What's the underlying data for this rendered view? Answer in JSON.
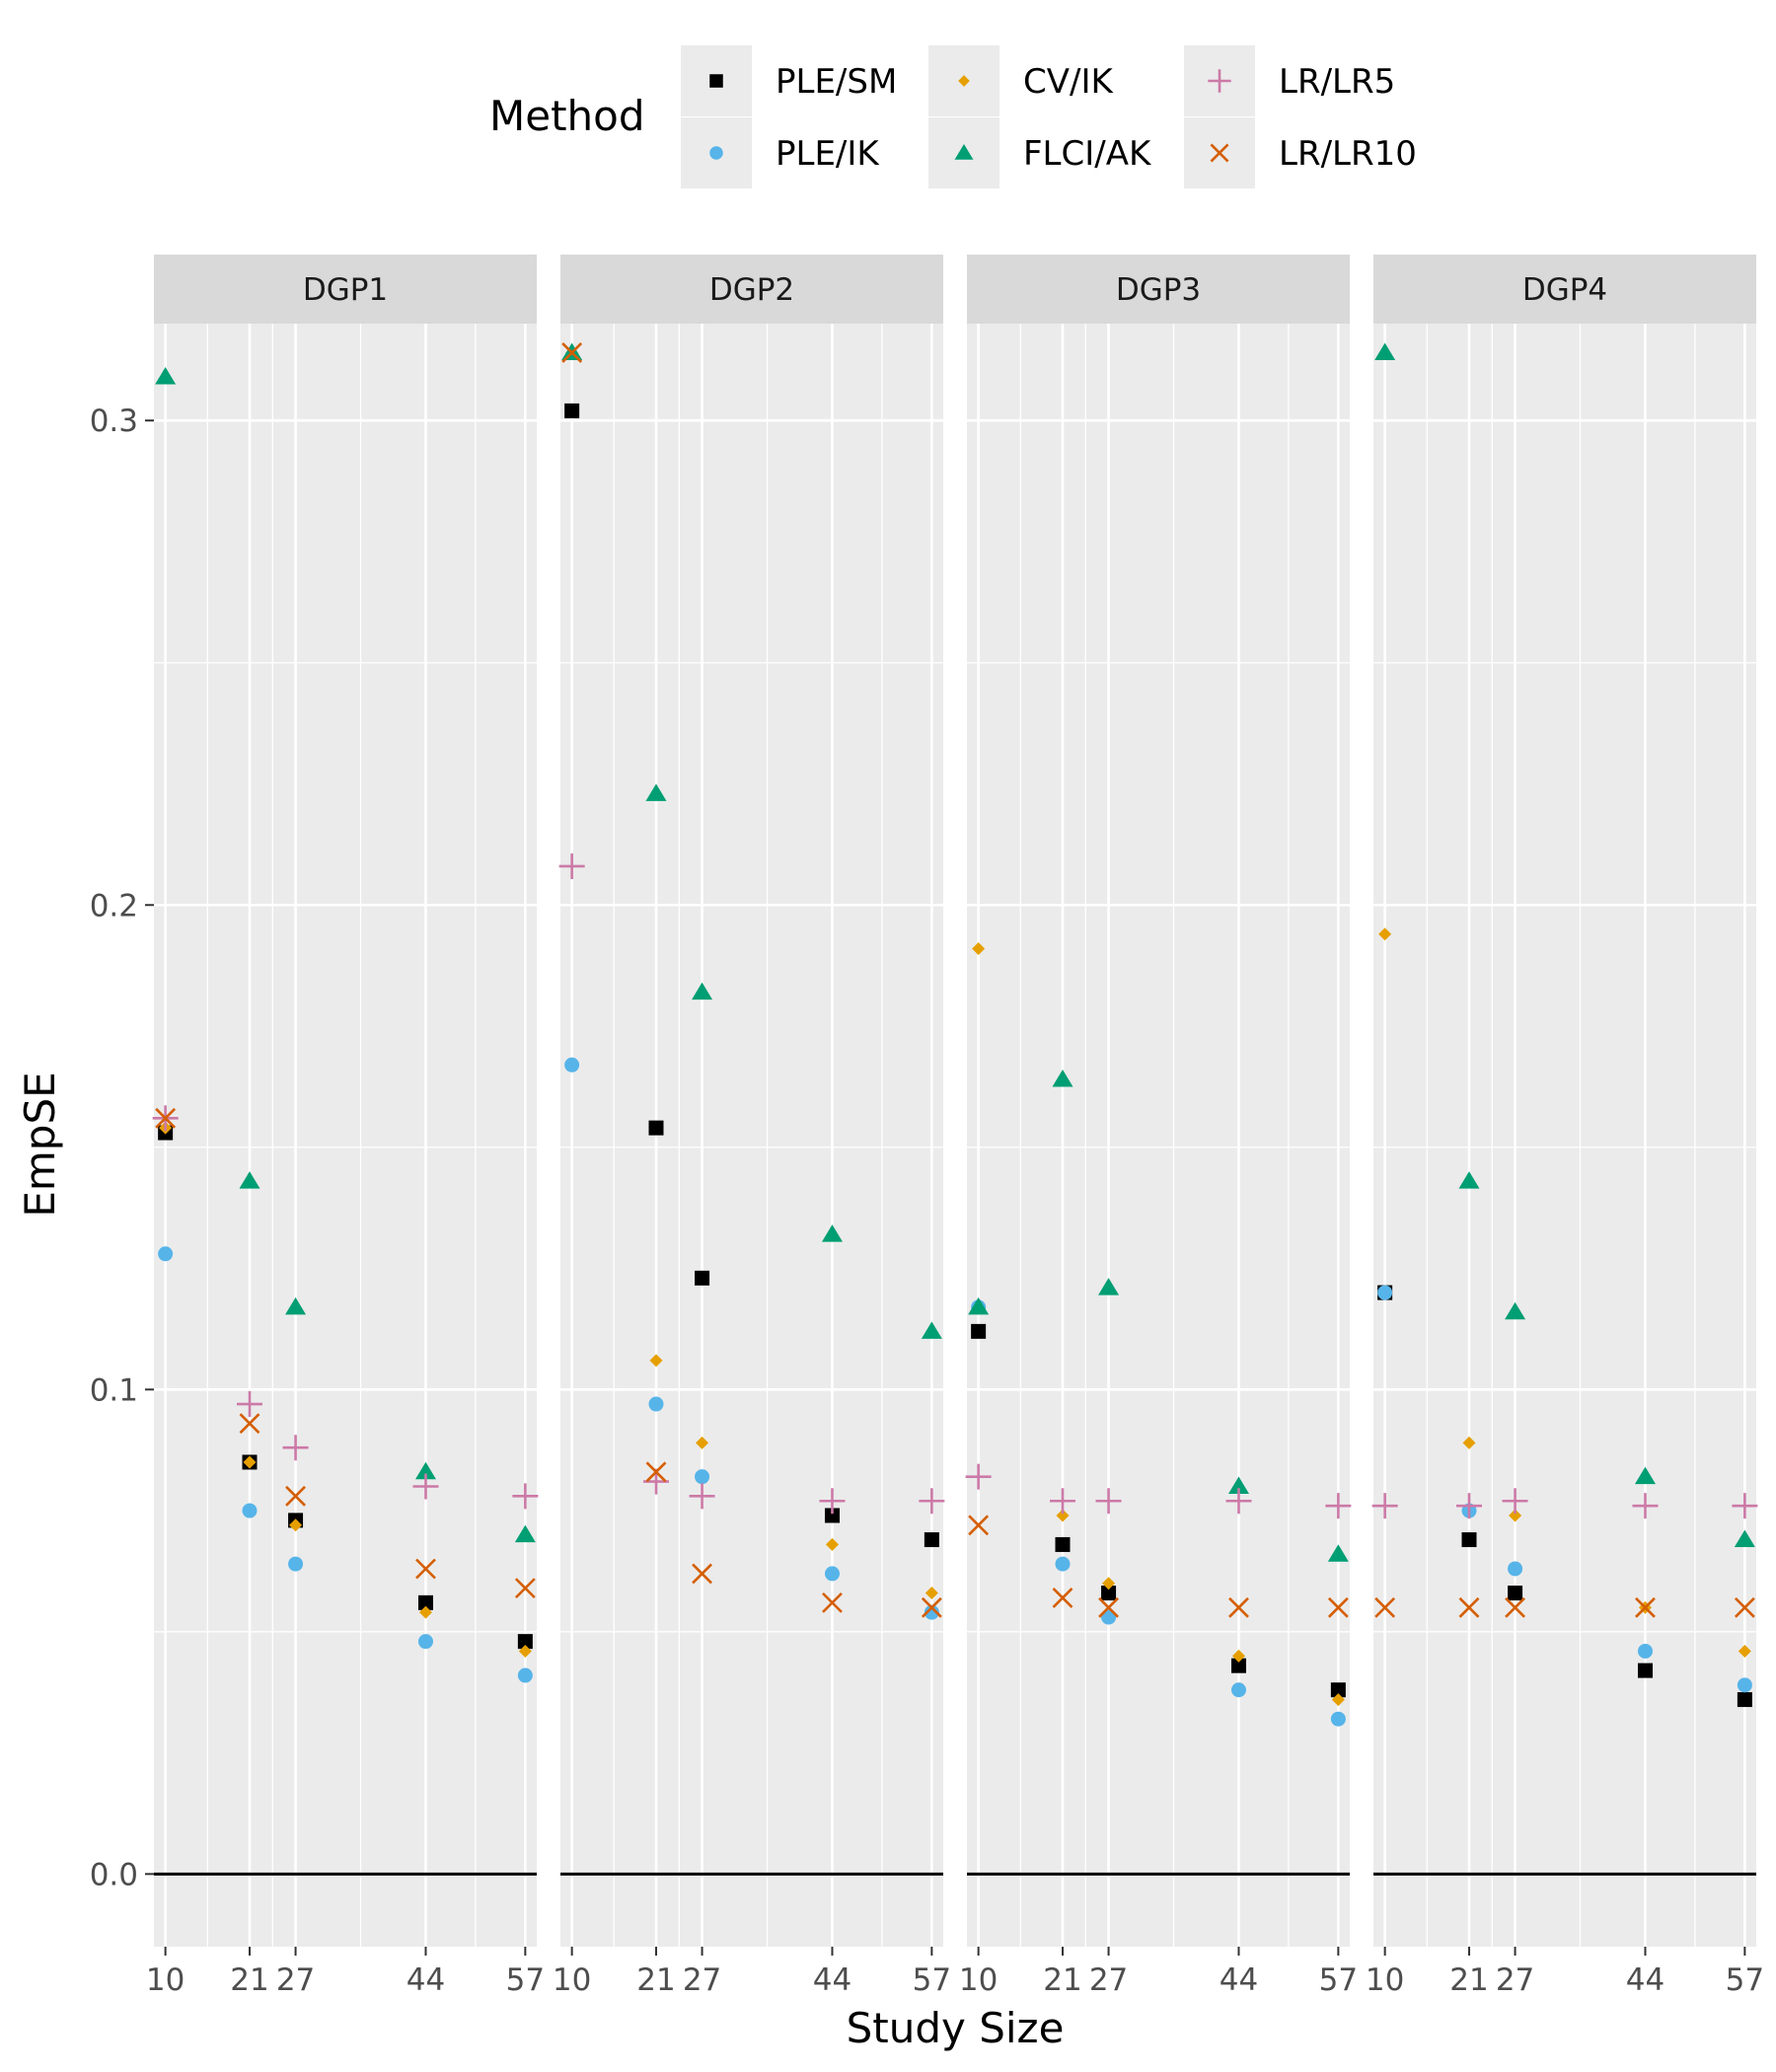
{
  "chart_data": {
    "type": "scatter",
    "xlabel": "Study Size",
    "ylabel": "EmpSE",
    "ylim": [
      -0.015,
      0.32
    ],
    "yticks": [
      0.0,
      0.1,
      0.2,
      0.3
    ],
    "ytick_labels": [
      "0.0",
      "0.1",
      "0.2",
      "0.3"
    ],
    "xlim": [
      8.5,
      58.5
    ],
    "xticks": [
      10,
      21,
      27,
      44,
      57
    ],
    "xtick_labels": [
      "10",
      "21",
      "27",
      "44",
      "57"
    ],
    "reference_line_y": 0,
    "grid": true,
    "legend": {
      "title": "Method",
      "position": "top",
      "entries": [
        {
          "name": "PLE/SM",
          "color": "#000000",
          "shape": "square"
        },
        {
          "name": "PLE/IK",
          "color": "#56B4E9",
          "shape": "circle"
        },
        {
          "name": "CV/IK",
          "color": "#E69F00",
          "shape": "diamond"
        },
        {
          "name": "FLCI/AK",
          "color": "#009E73",
          "shape": "triangle"
        },
        {
          "name": "LR/LR5",
          "color": "#CC79A7",
          "shape": "plus"
        },
        {
          "name": "LR/LR10",
          "color": "#D55E00",
          "shape": "cross"
        }
      ]
    },
    "panels": [
      {
        "name": "DGP1",
        "series": [
          {
            "name": "PLE/SM",
            "x": [
              10,
              21,
              27,
              44,
              57
            ],
            "values": [
              0.153,
              0.085,
              0.073,
              0.056,
              0.048
            ]
          },
          {
            "name": "PLE/IK",
            "x": [
              10,
              21,
              27,
              44,
              57
            ],
            "values": [
              0.128,
              0.075,
              0.064,
              0.048,
              0.041
            ]
          },
          {
            "name": "CV/IK",
            "x": [
              10,
              21,
              27,
              44,
              57
            ],
            "values": [
              0.154,
              0.085,
              0.072,
              0.054,
              0.046
            ]
          },
          {
            "name": "FLCI/AK",
            "x": [
              10,
              21,
              27,
              44,
              57
            ],
            "values": [
              0.309,
              0.143,
              0.117,
              0.083,
              0.07
            ]
          },
          {
            "name": "LR/LR5",
            "x": [
              10,
              21,
              27,
              44,
              57
            ],
            "values": [
              0.156,
              0.097,
              0.088,
              0.08,
              0.078
            ]
          },
          {
            "name": "LR/LR10",
            "x": [
              10,
              21,
              27,
              44,
              57
            ],
            "values": [
              0.156,
              0.093,
              0.078,
              0.063,
              0.059
            ]
          }
        ]
      },
      {
        "name": "DGP2",
        "series": [
          {
            "name": "PLE/SM",
            "x": [
              10,
              21,
              27,
              44,
              57
            ],
            "values": [
              0.302,
              0.154,
              0.123,
              0.074,
              0.069
            ]
          },
          {
            "name": "PLE/IK",
            "x": [
              10,
              21,
              27,
              44,
              57
            ],
            "values": [
              0.167,
              0.097,
              0.082,
              0.062,
              0.054
            ]
          },
          {
            "name": "CV/IK",
            "x": [
              10,
              21,
              27,
              44,
              57
            ],
            "values": [
              0.314,
              0.106,
              0.089,
              0.068,
              0.058
            ]
          },
          {
            "name": "FLCI/AK",
            "x": [
              10,
              21,
              27,
              44,
              57
            ],
            "values": [
              0.314,
              0.223,
              0.182,
              0.132,
              0.112
            ]
          },
          {
            "name": "LR/LR5",
            "x": [
              10,
              21,
              27,
              44,
              57
            ],
            "values": [
              0.208,
              0.081,
              0.078,
              0.077,
              0.077
            ]
          },
          {
            "name": "LR/LR10",
            "x": [
              10,
              21,
              27,
              44,
              57
            ],
            "values": [
              0.314,
              0.083,
              0.062,
              0.056,
              0.055
            ]
          }
        ]
      },
      {
        "name": "DGP3",
        "series": [
          {
            "name": "PLE/SM",
            "x": [
              10,
              21,
              27,
              44,
              57
            ],
            "values": [
              0.112,
              0.068,
              0.058,
              0.043,
              0.038
            ]
          },
          {
            "name": "PLE/IK",
            "x": [
              10,
              21,
              27,
              44,
              57
            ],
            "values": [
              0.117,
              0.064,
              0.053,
              0.038,
              0.032
            ]
          },
          {
            "name": "CV/IK",
            "x": [
              10,
              21,
              27,
              44,
              57
            ],
            "values": [
              0.191,
              0.074,
              0.06,
              0.045,
              0.036
            ]
          },
          {
            "name": "FLCI/AK",
            "x": [
              10,
              21,
              27,
              44,
              57
            ],
            "values": [
              0.117,
              0.164,
              0.121,
              0.08,
              0.066
            ]
          },
          {
            "name": "LR/LR5",
            "x": [
              10,
              21,
              27,
              44,
              57
            ],
            "values": [
              0.082,
              0.077,
              0.077,
              0.077,
              0.076
            ]
          },
          {
            "name": "LR/LR10",
            "x": [
              10,
              21,
              27,
              44,
              57
            ],
            "values": [
              0.072,
              0.057,
              0.055,
              0.055,
              0.055
            ]
          }
        ]
      },
      {
        "name": "DGP4",
        "series": [
          {
            "name": "PLE/SM",
            "x": [
              10,
              21,
              27,
              44,
              57
            ],
            "values": [
              0.12,
              0.069,
              0.058,
              0.042,
              0.036
            ]
          },
          {
            "name": "PLE/IK",
            "x": [
              10,
              21,
              27,
              44,
              57
            ],
            "values": [
              0.12,
              0.075,
              0.063,
              0.046,
              0.039
            ]
          },
          {
            "name": "CV/IK",
            "x": [
              10,
              21,
              27,
              44,
              57
            ],
            "values": [
              0.194,
              0.089,
              0.074,
              0.055,
              0.046
            ]
          },
          {
            "name": "FLCI/AK",
            "x": [
              10,
              21,
              27,
              44,
              57
            ],
            "values": [
              0.314,
              0.143,
              0.116,
              0.082,
              0.069
            ]
          },
          {
            "name": "LR/LR5",
            "x": [
              10,
              21,
              27,
              44,
              57
            ],
            "values": [
              0.076,
              0.076,
              0.077,
              0.076,
              0.076
            ]
          },
          {
            "name": "LR/LR10",
            "x": [
              10,
              21,
              27,
              44,
              57
            ],
            "values": [
              0.055,
              0.055,
              0.055,
              0.055,
              0.055
            ]
          }
        ]
      }
    ]
  }
}
